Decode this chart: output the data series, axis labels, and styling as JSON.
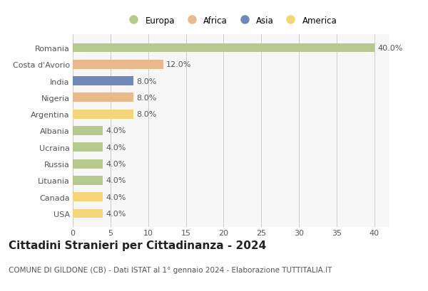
{
  "countries": [
    "Romania",
    "Costa d'Avorio",
    "India",
    "Nigeria",
    "Argentina",
    "Albania",
    "Ucraina",
    "Russia",
    "Lituania",
    "Canada",
    "USA"
  ],
  "values": [
    40.0,
    12.0,
    8.0,
    8.0,
    8.0,
    4.0,
    4.0,
    4.0,
    4.0,
    4.0,
    4.0
  ],
  "colors": [
    "#b5c98e",
    "#e8b98a",
    "#7088b8",
    "#e8b98a",
    "#f5d57a",
    "#b5c98e",
    "#b5c98e",
    "#b5c98e",
    "#b5c98e",
    "#f5d57a",
    "#f5d57a"
  ],
  "legend": [
    {
      "label": "Europa",
      "color": "#b5c98e"
    },
    {
      "label": "Africa",
      "color": "#e8b98a"
    },
    {
      "label": "Asia",
      "color": "#7088b8"
    },
    {
      "label": "America",
      "color": "#f5d57a"
    }
  ],
  "xlim": [
    0,
    42
  ],
  "xticks": [
    0,
    5,
    10,
    15,
    20,
    25,
    30,
    35,
    40
  ],
  "title": "Cittadini Stranieri per Cittadinanza - 2024",
  "subtitle": "COMUNE DI GILDONE (CB) - Dati ISTAT al 1° gennaio 2024 - Elaborazione TUTTITALIA.IT",
  "bg_color": "#ffffff",
  "plot_bg_color": "#f7f7f7",
  "grid_color": "#cccccc",
  "bar_height": 0.55,
  "label_fontsize": 8,
  "title_fontsize": 11,
  "subtitle_fontsize": 7.5,
  "tick_fontsize": 8,
  "legend_fontsize": 8.5
}
